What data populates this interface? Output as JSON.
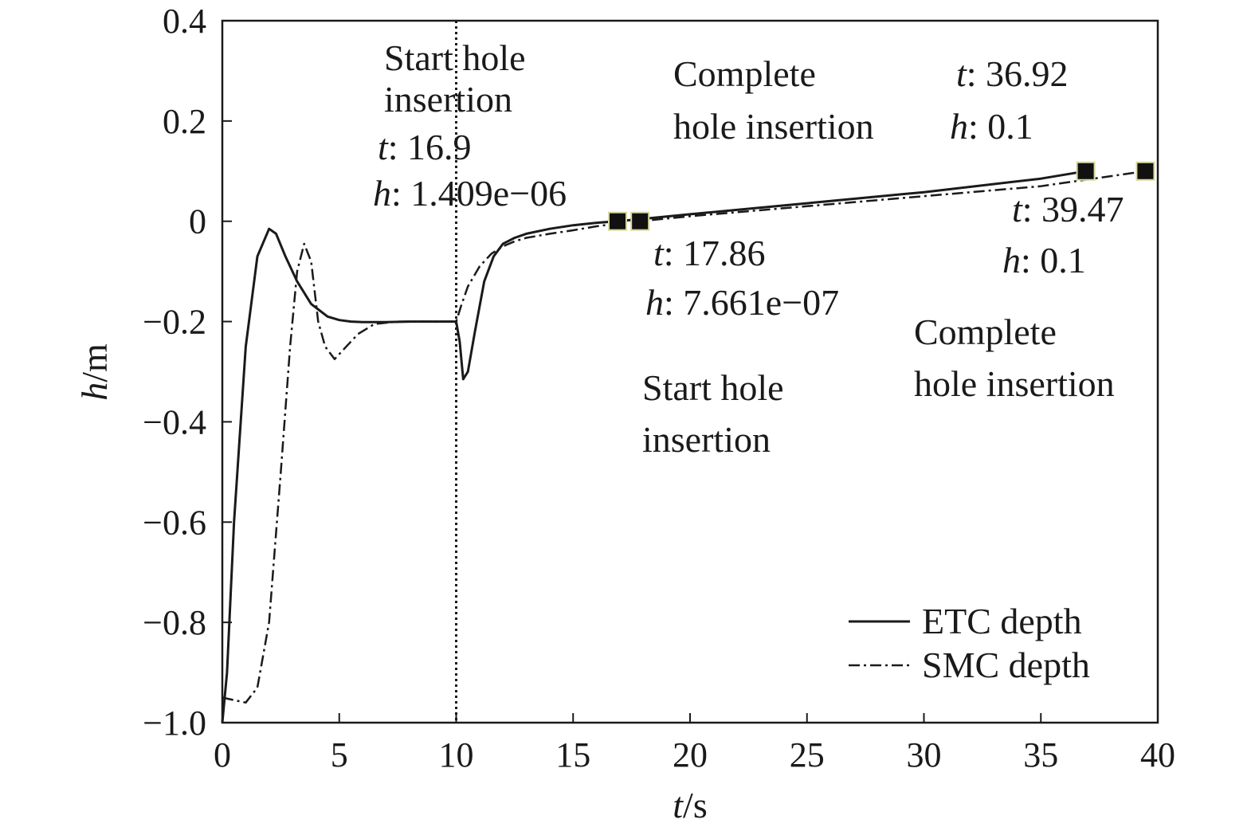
{
  "chart_data": {
    "type": "line",
    "xlabel": {
      "var": "t",
      "unit": "/s"
    },
    "ylabel": {
      "var": "h",
      "unit": "/m"
    },
    "xlim": [
      0,
      40
    ],
    "ylim": [
      -1.0,
      0.4
    ],
    "grid": false,
    "xticks": [
      0,
      5,
      10,
      15,
      20,
      25,
      30,
      35,
      40
    ],
    "xtick_labels": [
      "0",
      "5",
      "10",
      "15",
      "20",
      "25",
      "30",
      "35",
      "40"
    ],
    "yticks": [
      0.4,
      0.2,
      0,
      -0.2,
      -0.4,
      -0.6,
      -0.8,
      -1.0
    ],
    "ytick_labels": [
      "0.4",
      "0.2",
      "0",
      "−0.2",
      "−0.4",
      "−0.6",
      "−0.8",
      "−1.0"
    ],
    "legend": {
      "position": "bottom-right"
    },
    "vline": {
      "x": 10,
      "style": "dotted"
    },
    "series": [
      {
        "name": "ETC depth",
        "style": "solid",
        "x": [
          0,
          0.2,
          0.5,
          1.0,
          1.5,
          2.0,
          2.3,
          2.7,
          3.2,
          3.8,
          4.5,
          5.0,
          5.5,
          6.0,
          7.0,
          8.0,
          9.0,
          10.0,
          10.15,
          10.3,
          10.5,
          10.8,
          11.2,
          11.6,
          12.0,
          12.5,
          13.0,
          14.0,
          15.0,
          16.0,
          16.9,
          18.0,
          20.0,
          25.0,
          30.0,
          35.0,
          36.92
        ],
        "y": [
          -1.0,
          -0.9,
          -0.6,
          -0.25,
          -0.07,
          -0.015,
          -0.025,
          -0.07,
          -0.12,
          -0.165,
          -0.19,
          -0.197,
          -0.2,
          -0.201,
          -0.201,
          -0.2,
          -0.2,
          -0.2,
          -0.24,
          -0.315,
          -0.3,
          -0.22,
          -0.12,
          -0.07,
          -0.045,
          -0.033,
          -0.025,
          -0.015,
          -0.008,
          -0.003,
          0.0,
          0.005,
          0.014,
          0.036,
          0.058,
          0.085,
          0.1
        ]
      },
      {
        "name": "SMC depth",
        "style": "dashdot",
        "x": [
          0,
          0.5,
          1.0,
          1.5,
          2.0,
          2.5,
          2.9,
          3.2,
          3.5,
          3.8,
          4.1,
          4.4,
          4.8,
          5.2,
          5.8,
          6.5,
          7.5,
          8.5,
          9.5,
          10.0,
          10.2,
          10.5,
          11.0,
          11.5,
          12.0,
          12.5,
          13.0,
          14.0,
          15.0,
          16.0,
          17.0,
          17.86,
          20.0,
          25.0,
          30.0,
          35.0,
          39.47
        ],
        "y": [
          -0.95,
          -0.955,
          -0.96,
          -0.93,
          -0.8,
          -0.5,
          -0.25,
          -0.1,
          -0.045,
          -0.08,
          -0.2,
          -0.25,
          -0.275,
          -0.255,
          -0.225,
          -0.205,
          -0.2,
          -0.2,
          -0.2,
          -0.2,
          -0.17,
          -0.13,
          -0.09,
          -0.065,
          -0.05,
          -0.04,
          -0.033,
          -0.025,
          -0.018,
          -0.01,
          -0.004,
          0.0,
          0.01,
          0.03,
          0.05,
          0.07,
          0.1
        ]
      }
    ],
    "markers": [
      {
        "t": 16.9,
        "h": 0.0
      },
      {
        "t": 17.86,
        "h": 0.0
      },
      {
        "t": 36.92,
        "h": 0.1
      },
      {
        "t": 39.47,
        "h": 0.1
      }
    ],
    "annotations": [
      {
        "label": [
          "Start hole",
          "insertion"
        ],
        "t_prefix": "t",
        "t_text": ": 16.9",
        "h_prefix": "h",
        "h_text": ": 1.409e−06"
      },
      {
        "label": [
          "Complete",
          "hole insertion"
        ],
        "t_prefix": "t",
        "t_text": ": 36.92",
        "h_prefix": "h",
        "h_text": ": 0.1"
      },
      {
        "label": [
          "Start hole",
          "insertion"
        ],
        "t_prefix": "t",
        "t_text": ": 17.86",
        "h_prefix": "h",
        "h_text": ": 7.661e−07"
      },
      {
        "label": [
          "Complete",
          "hole insertion"
        ],
        "t_prefix": "t",
        "t_text": ": 39.47",
        "h_prefix": "h",
        "h_text": ": 0.1"
      }
    ]
  }
}
